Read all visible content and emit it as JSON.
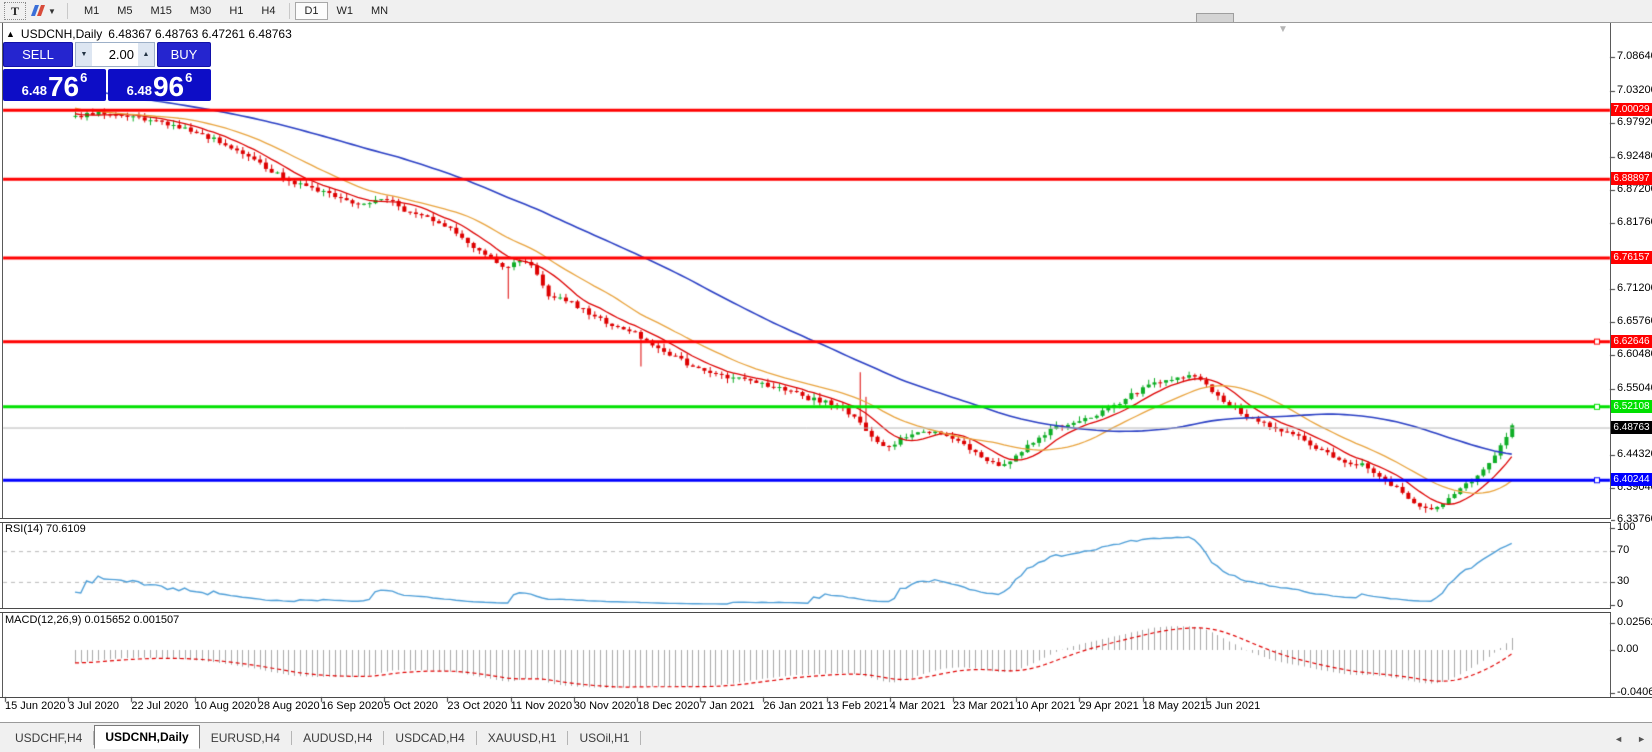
{
  "toolbar": {
    "text_tool_label": "T",
    "crayons_icon": "crayons-icon",
    "dropdown_arrow": "▼",
    "timeframes": [
      {
        "label": "M1"
      },
      {
        "label": "M5"
      },
      {
        "label": "M15"
      },
      {
        "label": "M30"
      },
      {
        "label": "H1"
      },
      {
        "label": "H4"
      },
      {
        "label": "D1"
      },
      {
        "label": "W1"
      },
      {
        "label": "MN"
      }
    ],
    "active_timeframe": "D1"
  },
  "chart": {
    "title": {
      "collapse_arrow": "▲",
      "symbol_period": "USDCNH,Daily",
      "ohlc": "6.48367 6.48763 6.47261 6.48763"
    },
    "shift_marker": "▼",
    "trade_panel": {
      "sell_label": "SELL",
      "buy_label": "BUY",
      "volume": "2.00",
      "spinner_up": "▲",
      "spinner_down": "▼",
      "sell_price": {
        "small": "6.48",
        "big": "76",
        "sup": "6"
      },
      "buy_price": {
        "small": "6.48",
        "big": "96",
        "sup": "6"
      }
    },
    "colors": {
      "candle_up": "#0fae26",
      "candle_down": "#dd0000",
      "ma_fast": "#dd0000",
      "ma_mid": "#e8a33d",
      "ma_slow": "#2a3fc4",
      "rsi_line": "#4f9fd8",
      "macd_hist": "#a8a8a8",
      "macd_signal": "#e00000",
      "current_line": "#b4b4b4"
    },
    "hlines": [
      {
        "label": "7.00029",
        "value": 7.00029,
        "color": "#ff0000",
        "handle": false
      },
      {
        "label": "6.88897",
        "value": 6.88897,
        "color": "#ff0000",
        "handle": false
      },
      {
        "label": "6.76157",
        "value": 6.76157,
        "color": "#ff0000",
        "handle": false
      },
      {
        "label": "6.62646",
        "value": 6.62646,
        "color": "#ff0000",
        "handle": true
      },
      {
        "label": "6.52108",
        "value": 6.52108,
        "color": "#00e000",
        "handle": true
      },
      {
        "label": "6.40244",
        "value": 6.40244,
        "color": "#0000ff",
        "handle": true
      }
    ],
    "current_price": {
      "label": "6.48763",
      "value": 6.48763,
      "bg": "#000000"
    },
    "price_ticks": [
      {
        "label": "7.08640",
        "value": 7.0864
      },
      {
        "label": "7.03200",
        "value": 7.032
      },
      {
        "label": "6.97920",
        "value": 6.9792
      },
      {
        "label": "6.92480",
        "value": 6.9248
      },
      {
        "label": "6.87200",
        "value": 6.872
      },
      {
        "label": "6.81760",
        "value": 6.8176
      },
      {
        "label": "6.71200",
        "value": 6.712
      },
      {
        "label": "6.65760",
        "value": 6.6576
      },
      {
        "label": "6.60480",
        "value": 6.6048
      },
      {
        "label": "6.55040",
        "value": 6.5504
      },
      {
        "label": "6.44320",
        "value": 6.4432
      },
      {
        "label": "6.39040",
        "value": 6.3904
      },
      {
        "label": "6.33760",
        "value": 6.3376
      }
    ],
    "rsi": {
      "label": "RSI(14) 70.6109",
      "ticks": [
        {
          "label": "100",
          "value": 100
        },
        {
          "label": "70",
          "value": 70
        },
        {
          "label": "30",
          "value": 30
        },
        {
          "label": "0",
          "value": 0
        }
      ],
      "dashed_levels": [
        70,
        30
      ]
    },
    "macd": {
      "label": "MACD(12,26,9) 0.015652 0.001507",
      "ticks": [
        {
          "label": "0.025623",
          "value": 0.025623
        },
        {
          "label": "0.00",
          "value": 0
        },
        {
          "label": "-0.04068",
          "value": -0.04068
        }
      ]
    },
    "dates": [
      "15 Jun 2020",
      "3 Jul 2020",
      "22 Jul 2020",
      "10 Aug 2020",
      "28 Aug 2020",
      "16 Sep 2020",
      "5 Oct 2020",
      "23 Oct 2020",
      "11 Nov 2020",
      "30 Nov 2020",
      "18 Dec 2020",
      "7 Jan 2021",
      "26 Jan 2021",
      "13 Feb 2021",
      "4 Mar 2021",
      "23 Mar 2021",
      "10 Apr 2021",
      "29 Apr 2021",
      "18 May 2021",
      "5 Jun 2021"
    ],
    "close_path": [
      [
        0.0,
        6.99
      ],
      [
        0.02,
        6.997
      ],
      [
        0.045,
        6.988
      ],
      [
        0.07,
        6.975
      ],
      [
        0.095,
        6.955
      ],
      [
        0.115,
        6.93
      ],
      [
        0.135,
        6.905
      ],
      [
        0.155,
        6.88
      ],
      [
        0.17,
        6.87
      ],
      [
        0.185,
        6.858
      ],
      [
        0.2,
        6.845
      ],
      [
        0.215,
        6.862
      ],
      [
        0.23,
        6.833
      ],
      [
        0.245,
        6.828
      ],
      [
        0.26,
        6.81
      ],
      [
        0.275,
        6.78
      ],
      [
        0.29,
        6.762
      ],
      [
        0.3,
        6.745
      ],
      [
        0.31,
        6.758
      ],
      [
        0.32,
        6.742
      ],
      [
        0.33,
        6.7
      ],
      [
        0.345,
        6.69
      ],
      [
        0.36,
        6.668
      ],
      [
        0.375,
        6.65
      ],
      [
        0.39,
        6.64
      ],
      [
        0.405,
        6.615
      ],
      [
        0.42,
        6.598
      ],
      [
        0.435,
        6.58
      ],
      [
        0.45,
        6.572
      ],
      [
        0.465,
        6.565
      ],
      [
        0.48,
        6.558
      ],
      [
        0.495,
        6.55
      ],
      [
        0.51,
        6.535
      ],
      [
        0.525,
        6.527
      ],
      [
        0.54,
        6.51
      ],
      [
        0.555,
        6.47
      ],
      [
        0.565,
        6.455
      ],
      [
        0.575,
        6.47
      ],
      [
        0.585,
        6.48
      ],
      [
        0.6,
        6.478
      ],
      [
        0.615,
        6.468
      ],
      [
        0.625,
        6.45
      ],
      [
        0.635,
        6.435
      ],
      [
        0.645,
        6.425
      ],
      [
        0.655,
        6.445
      ],
      [
        0.665,
        6.462
      ],
      [
        0.675,
        6.478
      ],
      [
        0.685,
        6.49
      ],
      [
        0.695,
        6.498
      ],
      [
        0.705,
        6.505
      ],
      [
        0.715,
        6.512
      ],
      [
        0.725,
        6.525
      ],
      [
        0.735,
        6.54
      ],
      [
        0.745,
        6.552
      ],
      [
        0.755,
        6.562
      ],
      [
        0.765,
        6.568
      ],
      [
        0.775,
        6.572
      ],
      [
        0.785,
        6.56
      ],
      [
        0.795,
        6.54
      ],
      [
        0.805,
        6.52
      ],
      [
        0.815,
        6.505
      ],
      [
        0.825,
        6.498
      ],
      [
        0.835,
        6.488
      ],
      [
        0.845,
        6.478
      ],
      [
        0.855,
        6.47
      ],
      [
        0.865,
        6.452
      ],
      [
        0.875,
        6.44
      ],
      [
        0.885,
        6.432
      ],
      [
        0.895,
        6.428
      ],
      [
        0.905,
        6.415
      ],
      [
        0.915,
        6.398
      ],
      [
        0.925,
        6.378
      ],
      [
        0.935,
        6.36
      ],
      [
        0.945,
        6.352
      ],
      [
        0.955,
        6.368
      ],
      [
        0.965,
        6.395
      ],
      [
        0.975,
        6.405
      ],
      [
        0.985,
        6.43
      ],
      [
        0.993,
        6.465
      ],
      [
        1.0,
        6.488
      ]
    ]
  },
  "tabs": {
    "items": [
      {
        "label": "USDCHF,H4",
        "active": false
      },
      {
        "label": "USDCNH,Daily",
        "active": true
      },
      {
        "label": "EURUSD,H4",
        "active": false
      },
      {
        "label": "AUDUSD,H4",
        "active": false
      },
      {
        "label": "USDCAD,H4",
        "active": false
      },
      {
        "label": "XAUUSD,H1",
        "active": false
      },
      {
        "label": "USOil,H1",
        "active": false
      }
    ],
    "scroll_left": "◄",
    "scroll_right": "►"
  }
}
